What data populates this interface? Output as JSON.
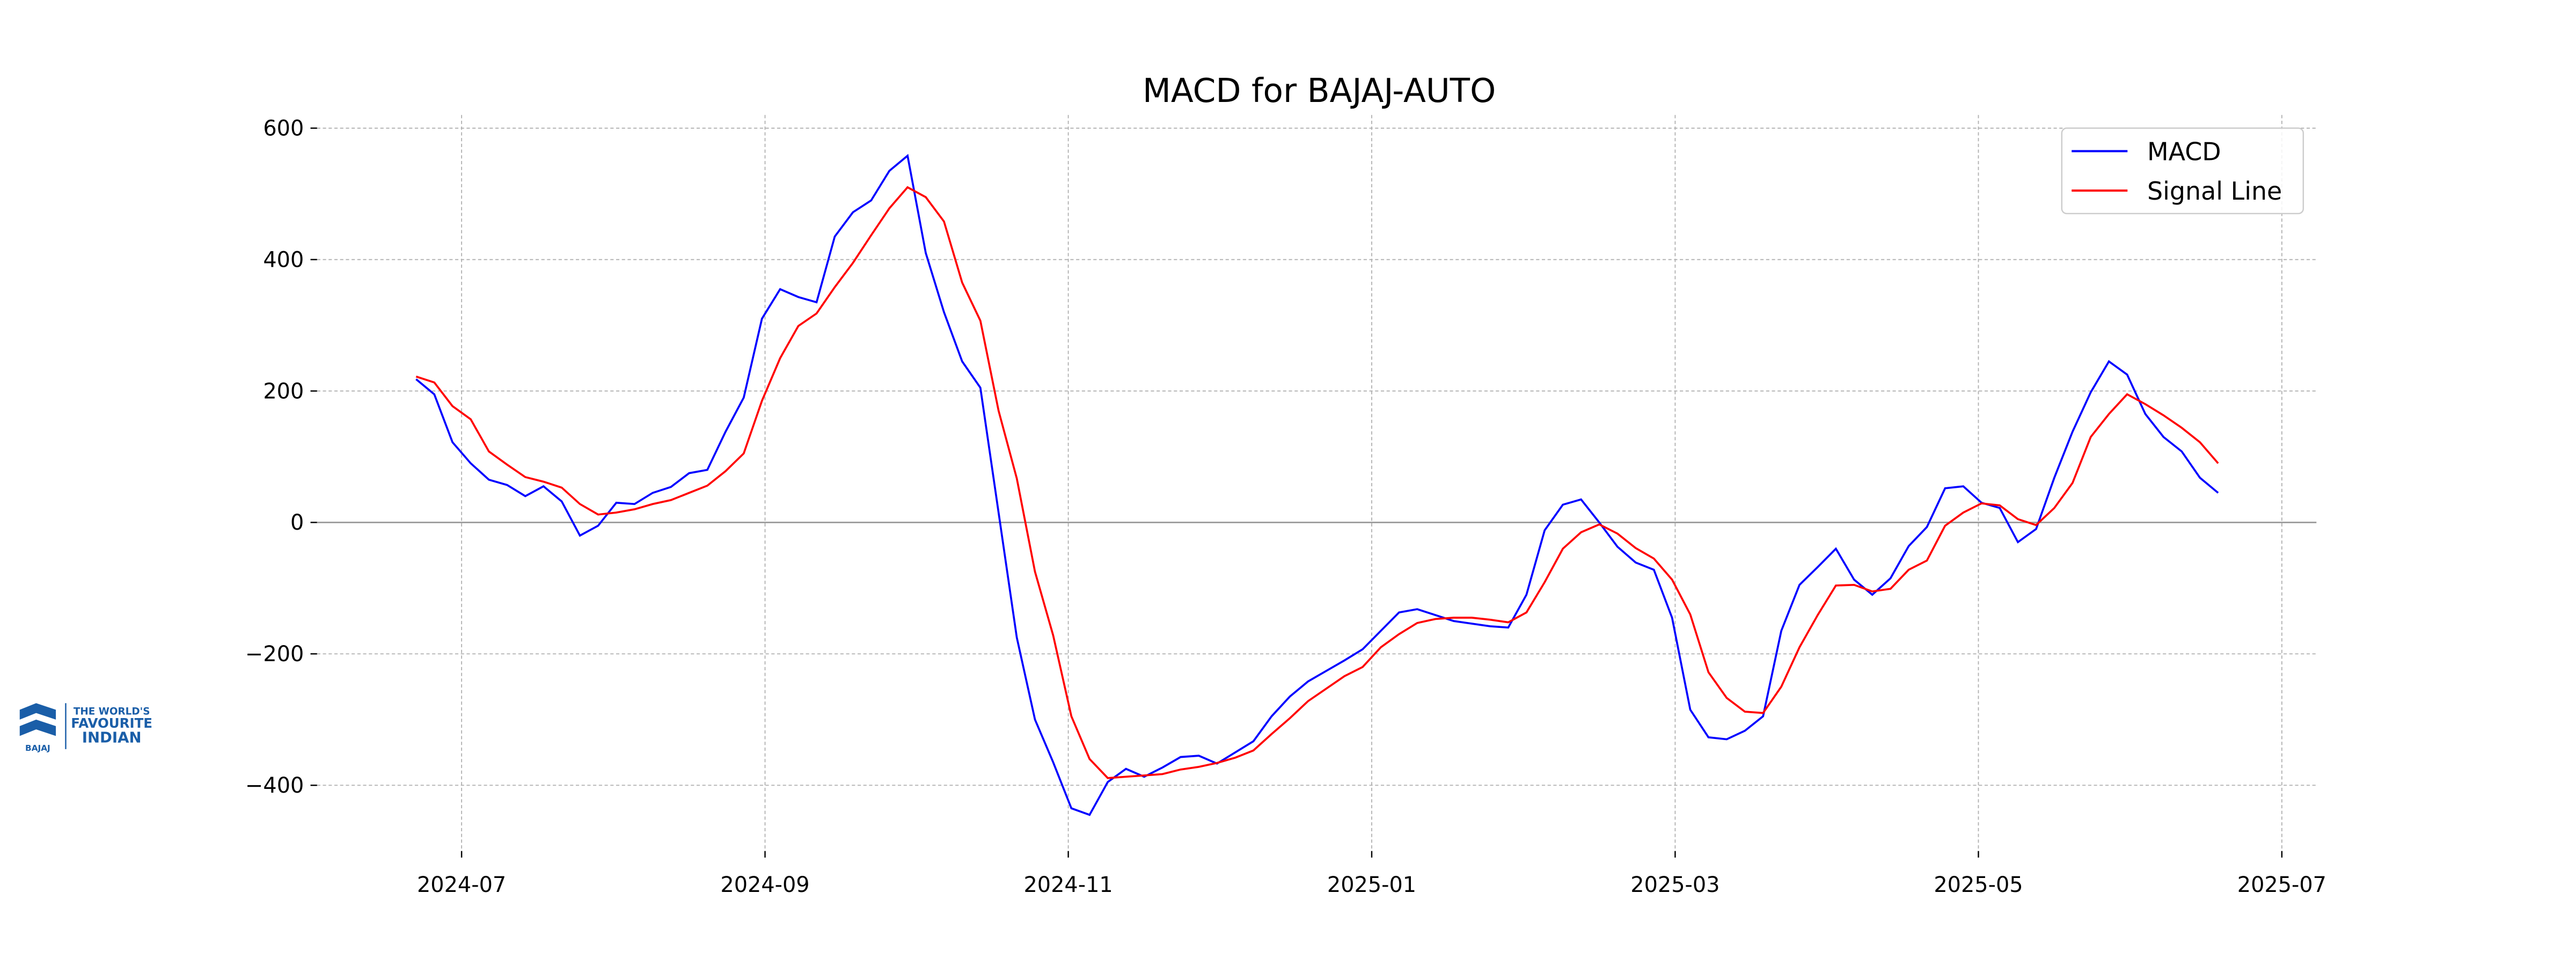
{
  "logo": {
    "brand": "BAJAJ",
    "tagline": [
      "THE WORLD'S",
      "FAVOURITE",
      "INDIAN"
    ]
  },
  "chart_data": {
    "type": "line",
    "title": "MACD for BAJAJ-AUTO",
    "x": [
      2024.475,
      2024.485,
      2024.495,
      2024.505,
      2024.515,
      2024.525,
      2024.535,
      2024.545,
      2024.555,
      2024.565,
      2024.575,
      2024.585,
      2024.595,
      2024.605,
      2024.615,
      2024.625,
      2024.635,
      2024.645,
      2024.655,
      2024.665,
      2024.675,
      2024.685,
      2024.695,
      2024.705,
      2024.715,
      2024.725,
      2024.735,
      2024.745,
      2024.755,
      2024.765,
      2024.775,
      2024.785,
      2024.795,
      2024.805,
      2024.815,
      2024.825,
      2024.835,
      2024.845,
      2024.855,
      2024.865,
      2024.875,
      2024.885,
      2024.895,
      2024.905,
      2024.915,
      2024.925,
      2024.935,
      2024.945,
      2024.955,
      2024.965,
      2024.975,
      2024.985,
      2024.995,
      2025.005,
      2025.015,
      2025.025,
      2025.035,
      2025.045,
      2025.055,
      2025.065,
      2025.075,
      2025.085,
      2025.095,
      2025.105,
      2025.115,
      2025.125,
      2025.135,
      2025.145,
      2025.155,
      2025.165,
      2025.175,
      2025.185,
      2025.195,
      2025.205,
      2025.215,
      2025.225,
      2025.235,
      2025.245,
      2025.255,
      2025.265,
      2025.275,
      2025.285,
      2025.295,
      2025.305,
      2025.315,
      2025.325,
      2025.335,
      2025.345,
      2025.355,
      2025.365,
      2025.375,
      2025.385,
      2025.395,
      2025.405,
      2025.415,
      2025.425,
      2025.435,
      2025.445,
      2025.455,
      2025.465
    ],
    "series": [
      {
        "name": "MACD",
        "color": "#0000ff",
        "values": [
          218,
          195,
          122,
          90,
          65,
          57,
          40,
          55,
          32,
          -20,
          -5,
          30,
          28,
          45,
          54,
          75,
          80,
          138,
          190,
          310,
          355,
          343,
          335,
          435,
          472,
          490,
          535,
          558,
          410,
          320,
          245,
          205,
          15,
          -175,
          -300,
          -365,
          -435,
          -445,
          -395,
          -375,
          -387,
          -373,
          -357,
          -355,
          -367,
          -350,
          -333,
          -295,
          -265,
          -242,
          -226,
          -210,
          -193,
          -165,
          -137,
          -132,
          -141,
          -150,
          -154,
          -158,
          -160,
          -110,
          -12,
          27,
          35,
          0,
          -37,
          -61,
          -72,
          -145,
          -285,
          -327,
          -330,
          -317,
          -295,
          -165,
          -95,
          -68,
          -40,
          -87,
          -110,
          -85,
          -36,
          -7,
          52,
          55,
          30,
          22,
          -30,
          -10,
          68,
          138,
          198,
          245,
          225,
          165,
          130,
          108,
          68,
          45
        ]
      },
      {
        "name": "Signal Line",
        "color": "#ff0000",
        "values": [
          222,
          213,
          177,
          157,
          108,
          88,
          69,
          62,
          53,
          28,
          12,
          15,
          20,
          28,
          34,
          45,
          56,
          78,
          105,
          185,
          250,
          299,
          318,
          358,
          395,
          437,
          478,
          510,
          495,
          458,
          365,
          307,
          170,
          67,
          -75,
          -172,
          -295,
          -360,
          -389,
          -387,
          -385,
          -383,
          -376,
          -372,
          -366,
          -358,
          -347,
          -322,
          -298,
          -272,
          -253,
          -234,
          -220,
          -190,
          -170,
          -153,
          -147,
          -145,
          -145,
          -148,
          -152,
          -137,
          -91,
          -40,
          -15,
          -3,
          -17,
          -39,
          -55,
          -87,
          -140,
          -228,
          -267,
          -288,
          -290,
          -250,
          -190,
          -141,
          -96,
          -95,
          -105,
          -101,
          -72,
          -58,
          -5,
          15,
          29,
          26,
          5,
          -4,
          22,
          60,
          130,
          165,
          195,
          180,
          163,
          144,
          122,
          90
        ]
      }
    ],
    "xlim": [
      2024.4206,
      2025.519
    ],
    "xticks": [
      {
        "value": 2024.5,
        "label": "2024-07"
      },
      {
        "value": 2024.6667,
        "label": "2024-09"
      },
      {
        "value": 2024.8333,
        "label": "2024-11"
      },
      {
        "value": 2025.0,
        "label": "2025-01"
      },
      {
        "value": 2025.1667,
        "label": "2025-03"
      },
      {
        "value": 2025.3333,
        "label": "2025-05"
      },
      {
        "value": 2025.5,
        "label": "2025-07"
      }
    ],
    "ylim": [
      -500,
      620
    ],
    "yticks": [
      {
        "value": -400,
        "label": "−400"
      },
      {
        "value": -200,
        "label": "−200"
      },
      0,
      200,
      400,
      600
    ],
    "grid": true,
    "zero_line": true,
    "legend": "upper right"
  }
}
